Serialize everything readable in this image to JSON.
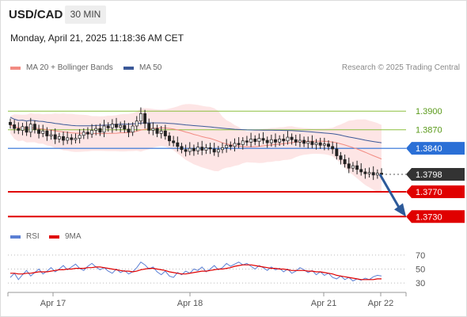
{
  "header": {
    "symbol": "USD/CAD",
    "timeframe": "30 MIN",
    "datetime": "Monday, April 21, 2025 11:18:36 AM CET"
  },
  "legend": {
    "bollinger_label": "MA 20 + Bollinger Bands",
    "ma50_label": "MA 50",
    "credit": "Research © 2025 Trading Central"
  },
  "rsi_legend": {
    "rsi_label": "RSI",
    "ma_label": "9MA"
  },
  "colors": {
    "bollinger": "#f28b82",
    "bollinger_fill": "#fde0e0",
    "ma50": "#3b5998",
    "resistance": "#8cbf3f",
    "resistance_text": "#5a9a1a",
    "pivot": "#2a6fd6",
    "current": "#333333",
    "support": "#e00000",
    "arrow": "#2d5a9a",
    "rsi": "#5b7fd4",
    "rsi_ma": "#e00000",
    "candle_up": "#f0f0f0",
    "candle_down": "#222222"
  },
  "chart_data": {
    "type": "candlestick",
    "instrument": "USD/CAD",
    "x_ticks": [
      "Apr 17",
      "Apr 18",
      "Apr 21",
      "Apr 22"
    ],
    "y_range": [
      1.3715,
      1.3945
    ],
    "levels": [
      {
        "label": "1.3900",
        "value": 1.39,
        "kind": "resistance"
      },
      {
        "label": "1.3870",
        "value": 1.387,
        "kind": "resistance"
      },
      {
        "label": "1.3840",
        "value": 1.384,
        "kind": "pivot"
      },
      {
        "label": "1.3798",
        "value": 1.3798,
        "kind": "current"
      },
      {
        "label": "1.3770",
        "value": 1.377,
        "kind": "support"
      },
      {
        "label": "1.3730",
        "value": 1.373,
        "kind": "support"
      }
    ],
    "projection": {
      "from": 1.3798,
      "to": 1.3735
    },
    "closes": [
      1.3878,
      1.3872,
      1.3869,
      1.3875,
      1.3866,
      1.3879,
      1.387,
      1.3864,
      1.3868,
      1.386,
      1.3862,
      1.3855,
      1.3859,
      1.3853,
      1.3857,
      1.3854,
      1.3856,
      1.3861,
      1.3866,
      1.3863,
      1.3869,
      1.3872,
      1.3866,
      1.3876,
      1.3873,
      1.3879,
      1.3874,
      1.3877,
      1.3871,
      1.3866,
      1.3876,
      1.3884,
      1.3896,
      1.388,
      1.3869,
      1.3872,
      1.3864,
      1.3868,
      1.386,
      1.3852,
      1.3849,
      1.3843,
      1.3838,
      1.3835,
      1.384,
      1.3836,
      1.3842,
      1.3837,
      1.3841,
      1.3839,
      1.3834,
      1.3838,
      1.3841,
      1.3845,
      1.3843,
      1.3848,
      1.3846,
      1.3852,
      1.385,
      1.3855,
      1.3851,
      1.3856,
      1.3853,
      1.3849,
      1.3854,
      1.385,
      1.3855,
      1.3852,
      1.3858,
      1.3854,
      1.385,
      1.3853,
      1.3848,
      1.3851,
      1.3846,
      1.3849,
      1.3845,
      1.3847,
      1.3843,
      1.3839,
      1.3828,
      1.3822,
      1.3815,
      1.3808,
      1.3812,
      1.3806,
      1.3802,
      1.3799,
      1.3801,
      1.3797,
      1.38,
      1.3798
    ],
    "rsi": {
      "y_ticks": [
        "70",
        "50",
        "30"
      ],
      "range": [
        20,
        80
      ],
      "values": [
        38,
        44,
        35,
        42,
        48,
        40,
        45,
        50,
        43,
        47,
        52,
        46,
        50,
        55,
        49,
        53,
        57,
        51,
        48,
        54,
        58,
        53,
        49,
        52,
        47,
        44,
        50,
        45,
        48,
        43,
        46,
        52,
        60,
        56,
        50,
        53,
        46,
        42,
        47,
        40,
        38,
        45,
        42,
        47,
        44,
        50,
        48,
        53,
        46,
        50,
        55,
        49,
        52,
        58,
        54,
        57,
        60,
        56,
        58,
        54,
        50,
        55,
        52,
        48,
        53,
        49,
        51,
        46,
        50,
        44,
        47,
        52,
        49,
        45,
        48,
        42,
        46,
        41,
        44,
        38,
        36,
        40,
        35,
        38,
        33,
        36,
        34,
        37,
        35,
        39,
        41,
        40
      ],
      "ma9": [
        44,
        44,
        43,
        43,
        44,
        44,
        45,
        46,
        46,
        46,
        47,
        48,
        49,
        49,
        50,
        50,
        51,
        51,
        51,
        52,
        52,
        53,
        53,
        52,
        51,
        50,
        49,
        48,
        47,
        47,
        46,
        47,
        49,
        50,
        51,
        51,
        50,
        49,
        48,
        46,
        45,
        44,
        43,
        43,
        44,
        45,
        46,
        47,
        47,
        48,
        49,
        50,
        50,
        51,
        52,
        54,
        55,
        56,
        56,
        56,
        55,
        54,
        53,
        52,
        51,
        51,
        50,
        50,
        49,
        48,
        48,
        48,
        48,
        47,
        47,
        46,
        46,
        45,
        44,
        43,
        41,
        40,
        39,
        38,
        37,
        36,
        35,
        35,
        35,
        35,
        36,
        36
      ]
    }
  }
}
